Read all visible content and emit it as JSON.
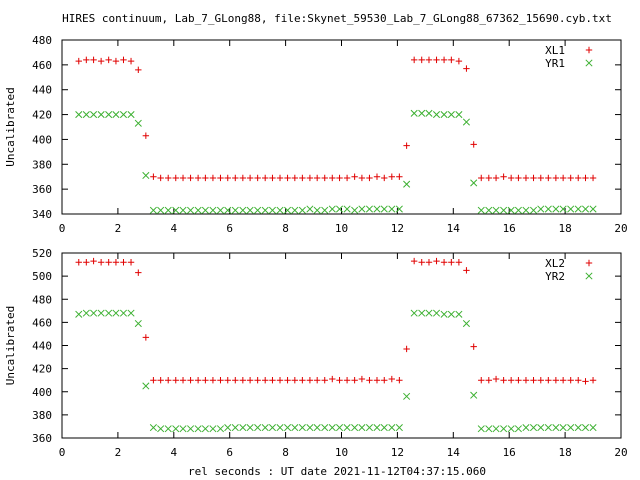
{
  "title": "HIRES continuum, Lab_7_GLong88, file:Skynet_59530_Lab_7_GLong88_67362_15690.cyb.txt",
  "xlabel": "rel seconds : UT date 2021-11-12T04:37:15.060",
  "colors": {
    "red": "#e00000",
    "green": "#3cb031",
    "axis": "#000000"
  },
  "chart_data": [
    {
      "type": "scatter",
      "ylabel": "Uncalibrated",
      "xlim": [
        0,
        20
      ],
      "ylim": [
        340,
        480
      ],
      "xticks": [
        0,
        2,
        4,
        6,
        8,
        10,
        12,
        14,
        16,
        18,
        20
      ],
      "yticks": [
        340,
        360,
        380,
        400,
        420,
        440,
        460,
        480
      ],
      "legend_position": "top-right",
      "x": [
        0.6,
        0.87,
        1.13,
        1.4,
        1.67,
        1.93,
        2.2,
        2.47,
        2.73,
        3.0,
        3.27,
        3.53,
        3.8,
        4.07,
        4.33,
        4.6,
        4.87,
        5.13,
        5.4,
        5.67,
        5.93,
        6.2,
        6.47,
        6.73,
        7.0,
        7.27,
        7.53,
        7.8,
        8.07,
        8.33,
        8.6,
        8.87,
        9.13,
        9.4,
        9.67,
        9.93,
        10.2,
        10.47,
        10.73,
        11.0,
        11.27,
        11.53,
        11.8,
        12.07,
        12.33,
        12.6,
        12.87,
        13.13,
        13.4,
        13.67,
        13.93,
        14.2,
        14.47,
        14.73,
        15.0,
        15.27,
        15.53,
        15.8,
        16.07,
        16.33,
        16.6,
        16.87,
        17.13,
        17.4,
        17.67,
        17.93,
        18.2,
        18.47,
        18.73,
        19.0
      ],
      "series": [
        {
          "name": "XL1",
          "marker": "plus",
          "color": "#e00000",
          "values": [
            463,
            464,
            464,
            463,
            464,
            463,
            464,
            463,
            456,
            403,
            370,
            369,
            369,
            369,
            369,
            369,
            369,
            369,
            369,
            369,
            369,
            369,
            369,
            369,
            369,
            369,
            369,
            369,
            369,
            369,
            369,
            369,
            369,
            369,
            369,
            369,
            369,
            370,
            369,
            369,
            370,
            369,
            370,
            370,
            395,
            464,
            464,
            464,
            464,
            464,
            464,
            463,
            457,
            396,
            369,
            369,
            369,
            370,
            369,
            369,
            369,
            369,
            369,
            369,
            369,
            369,
            369,
            369,
            369,
            369
          ]
        },
        {
          "name": "YR1",
          "marker": "cross",
          "color": "#3cb031",
          "values": [
            420,
            420,
            420,
            420,
            420,
            420,
            420,
            420,
            413,
            371,
            343,
            343,
            343,
            343,
            343,
            343,
            343,
            343,
            343,
            343,
            343,
            343,
            343,
            343,
            343,
            343,
            343,
            343,
            343,
            343,
            343,
            344,
            343,
            343,
            344,
            344,
            344,
            343,
            344,
            344,
            344,
            344,
            344,
            344,
            364,
            421,
            421,
            421,
            420,
            420,
            420,
            420,
            414,
            365,
            343,
            343,
            343,
            343,
            343,
            343,
            343,
            343,
            344,
            344,
            344,
            344,
            344,
            344,
            344,
            344
          ]
        }
      ]
    },
    {
      "type": "scatter",
      "ylabel": "Uncalibrated",
      "xlim": [
        0,
        20
      ],
      "ylim": [
        360,
        520
      ],
      "xticks": [
        0,
        2,
        4,
        6,
        8,
        10,
        12,
        14,
        16,
        18,
        20
      ],
      "yticks": [
        360,
        380,
        400,
        420,
        440,
        460,
        480,
        500,
        520
      ],
      "legend_position": "top-right",
      "x": [
        0.6,
        0.87,
        1.13,
        1.4,
        1.67,
        1.93,
        2.2,
        2.47,
        2.73,
        3.0,
        3.27,
        3.53,
        3.8,
        4.07,
        4.33,
        4.6,
        4.87,
        5.13,
        5.4,
        5.67,
        5.93,
        6.2,
        6.47,
        6.73,
        7.0,
        7.27,
        7.53,
        7.8,
        8.07,
        8.33,
        8.6,
        8.87,
        9.13,
        9.4,
        9.67,
        9.93,
        10.2,
        10.47,
        10.73,
        11.0,
        11.27,
        11.53,
        11.8,
        12.07,
        12.33,
        12.6,
        12.87,
        13.13,
        13.4,
        13.67,
        13.93,
        14.2,
        14.47,
        14.73,
        15.0,
        15.27,
        15.53,
        15.8,
        16.07,
        16.33,
        16.6,
        16.87,
        17.13,
        17.4,
        17.67,
        17.93,
        18.2,
        18.47,
        18.73,
        19.0
      ],
      "series": [
        {
          "name": "XL2",
          "marker": "plus",
          "color": "#e00000",
          "values": [
            512,
            512,
            513,
            512,
            512,
            512,
            512,
            512,
            503,
            447,
            410,
            410,
            410,
            410,
            410,
            410,
            410,
            410,
            410,
            410,
            410,
            410,
            410,
            410,
            410,
            410,
            410,
            410,
            410,
            410,
            410,
            410,
            410,
            410,
            411,
            410,
            410,
            410,
            411,
            410,
            410,
            410,
            411,
            410,
            437,
            513,
            512,
            512,
            513,
            512,
            512,
            512,
            505,
            439,
            410,
            410,
            411,
            410,
            410,
            410,
            410,
            410,
            410,
            410,
            410,
            410,
            410,
            410,
            409,
            410
          ]
        },
        {
          "name": "YR2",
          "marker": "cross",
          "color": "#3cb031",
          "values": [
            467,
            468,
            468,
            468,
            468,
            468,
            468,
            468,
            459,
            405,
            369,
            368,
            368,
            368,
            368,
            368,
            368,
            368,
            368,
            368,
            369,
            369,
            369,
            369,
            369,
            369,
            369,
            369,
            369,
            369,
            369,
            369,
            369,
            369,
            369,
            369,
            369,
            369,
            369,
            369,
            369,
            369,
            369,
            369,
            396,
            468,
            468,
            468,
            468,
            467,
            467,
            467,
            459,
            397,
            368,
            368,
            368,
            368,
            368,
            368,
            369,
            369,
            369,
            369,
            369,
            369,
            369,
            369,
            369,
            369
          ]
        }
      ]
    }
  ]
}
